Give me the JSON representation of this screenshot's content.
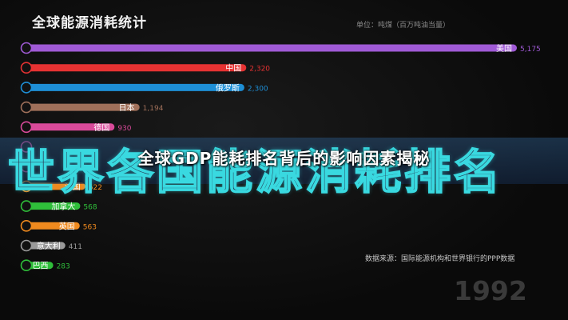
{
  "header": {
    "title": "全球能源消耗统计",
    "unit": "单位：吨煤（百万吨油当量）"
  },
  "source": "数据来源：国际能源机构和世界银行的PPP数据",
  "year": "1992",
  "banner": {
    "title": "全球GDP能耗排名背后的影响因素揭秘",
    "overlay_text": "世界各国能源消耗排名"
  },
  "chart_data": {
    "type": "bar",
    "title": "全球能源消耗统计",
    "orientation": "horizontal",
    "year": "1992",
    "categories": [
      "美国",
      "中国",
      "俄罗斯",
      "日本",
      "德国",
      "",
      "",
      "法国",
      "加拿大",
      "英国",
      "意大利",
      "巴西"
    ],
    "values": [
      5175,
      2320,
      2300,
      1194,
      930,
      null,
      null,
      622,
      568,
      563,
      411,
      283
    ],
    "value_labels": [
      "5,175",
      "2,320",
      "2,300",
      "1,194",
      "930",
      "",
      "",
      "622",
      "568",
      "563",
      "411",
      "283"
    ],
    "colors": [
      "#a05ad6",
      "#e63232",
      "#1e8fd6",
      "#a0705a",
      "#d94a9a",
      "#d94a9a",
      "#d94a9a",
      "#f08a1e",
      "#2fbf3a",
      "#f08a1e",
      "#9a9a9a",
      "#2fbf3a"
    ],
    "xlim": [
      0,
      5175
    ]
  }
}
